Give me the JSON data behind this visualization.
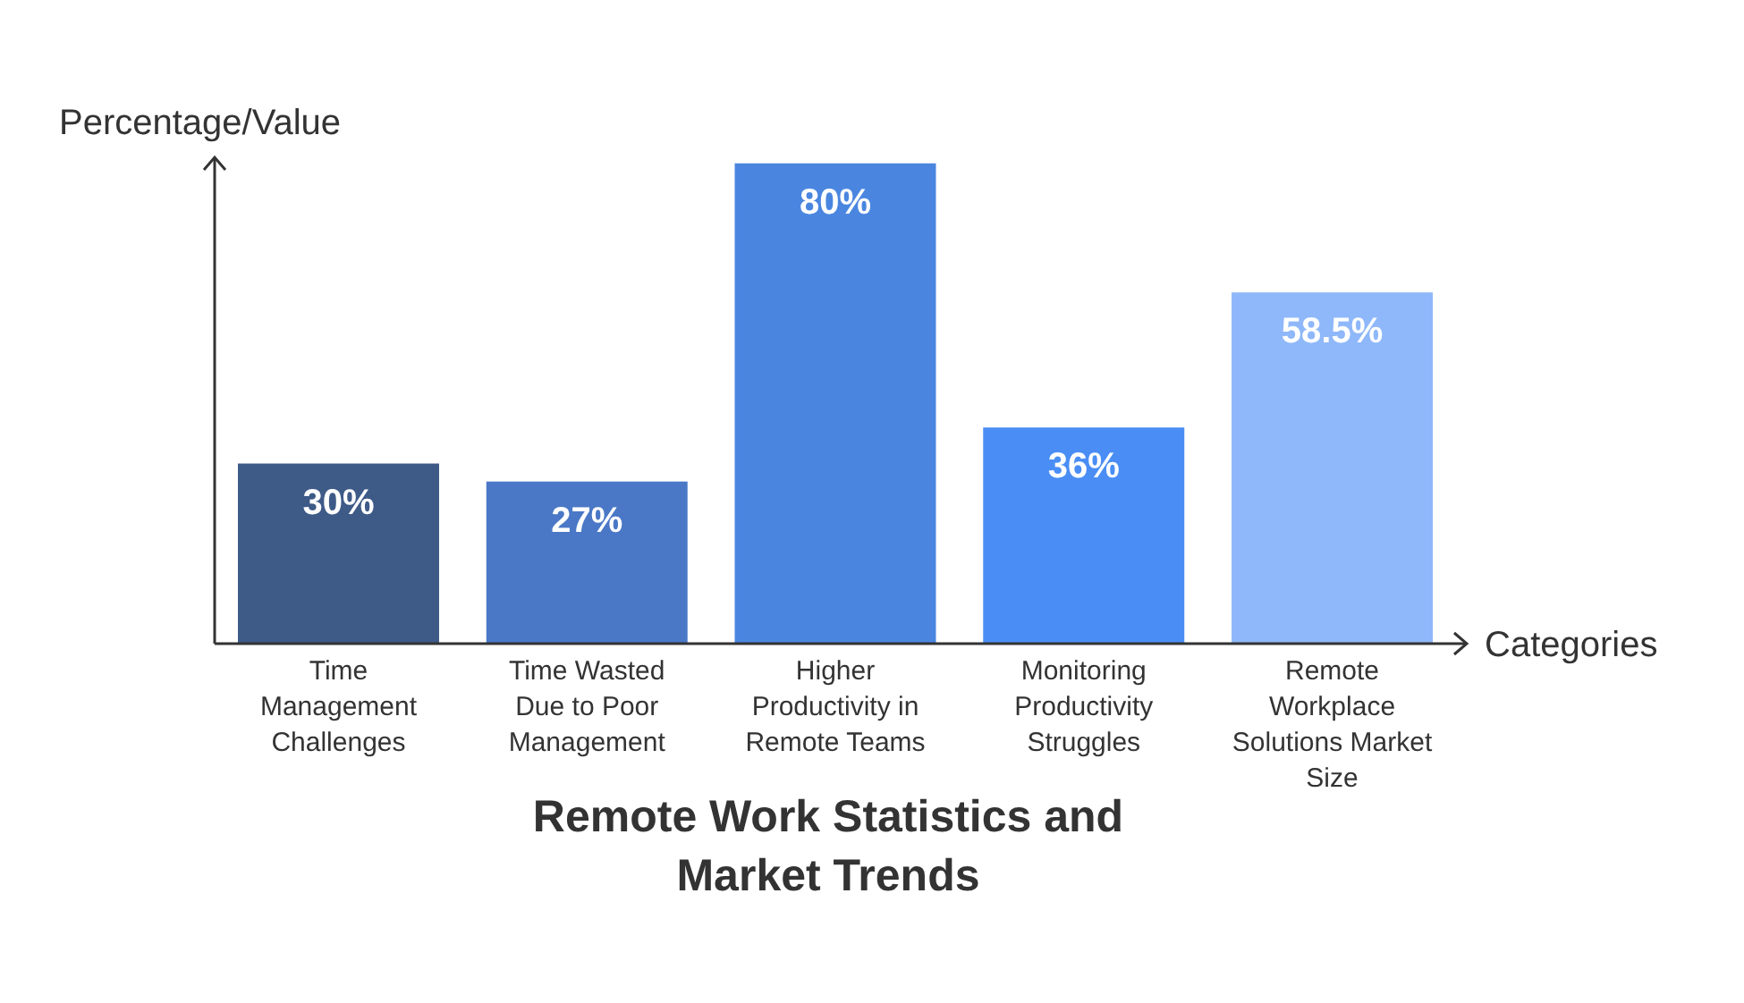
{
  "chart_data": {
    "type": "bar",
    "title": "Remote Work Statistics and Market Trends",
    "xlabel": "Categories",
    "ylabel": "Percentage/Value",
    "categories": [
      "Time Management Challenges",
      "Time Wasted Due to Poor Management",
      "Higher Productivity in Remote Teams",
      "Monitoring Productivity Struggles",
      "Remote Workplace Solutions Market Size"
    ],
    "values": [
      30,
      27,
      80,
      36,
      58.5
    ],
    "colors": [
      "#3e5a87",
      "#4a78c6",
      "#4a86e0",
      "#4a8ef5",
      "#8fb8fa"
    ],
    "value_labels": [
      "30%",
      "27%",
      "80%",
      "36%",
      "58.5%"
    ],
    "ylim": [
      0,
      81
    ]
  }
}
